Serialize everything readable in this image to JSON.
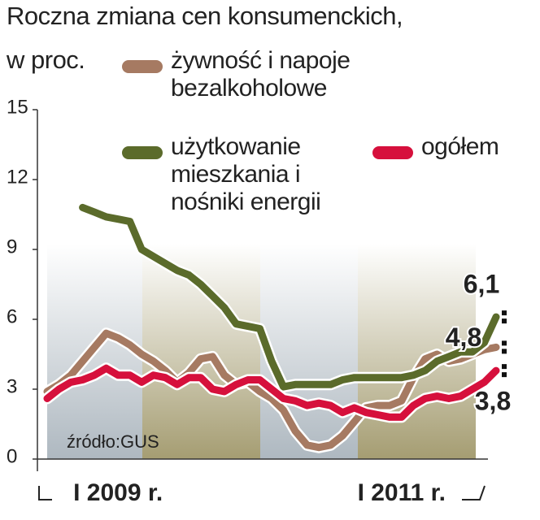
{
  "chart_data": {
    "type": "line",
    "title": "Roczna zmiana cen konsumenckich,",
    "y_label": "w proc.",
    "source": "źródło:GUS",
    "categories": [
      null,
      null,
      null,
      null,
      null,
      null,
      "I 2009 r.",
      null,
      null,
      null,
      null,
      null,
      null,
      null,
      null,
      null,
      null,
      null,
      null,
      null,
      null,
      null,
      null,
      null,
      null,
      null,
      null,
      null,
      null,
      null,
      "I 2011 r.",
      null,
      null,
      null,
      null,
      null,
      null,
      null,
      null
    ],
    "ylim": [
      0,
      15
    ],
    "yticks": [
      0,
      3,
      6,
      9,
      12,
      15
    ],
    "grid": false,
    "series": [
      {
        "name": "żywność i napoje bezalkoholowe",
        "color": "#a67a62",
        "values": [
          2.9,
          3.2,
          3.6,
          4.2,
          4.8,
          5.4,
          5.2,
          4.9,
          4.5,
          4.2,
          3.8,
          3.3,
          3.7,
          4.3,
          4.4,
          3.6,
          3.2,
          3.3,
          2.9,
          2.6,
          2.1,
          1.2,
          0.6,
          0.5,
          0.6,
          1.0,
          1.6,
          2.2,
          2.3,
          2.3,
          2.5,
          3.5,
          4.3,
          4.5,
          4.2,
          4.3,
          4.5,
          4.7,
          4.8
        ],
        "value_labels": [
          null,
          null,
          null,
          null,
          null,
          null,
          null,
          null,
          null,
          null,
          null,
          null,
          null,
          null,
          null,
          null,
          null,
          null,
          null,
          null,
          null,
          null,
          null,
          null,
          null,
          null,
          null,
          null,
          null,
          null,
          null,
          null,
          null,
          null,
          null,
          null,
          null,
          null,
          "4,8"
        ]
      },
      {
        "name": "użytkowanie mieszkania i nośniki energii",
        "color": "#5b6b2b",
        "values": [
          null,
          null,
          null,
          10.8,
          10.6,
          10.4,
          10.3,
          10.2,
          9.0,
          8.7,
          8.4,
          8.1,
          7.9,
          7.5,
          7.0,
          6.5,
          5.8,
          5.7,
          5.6,
          4.2,
          3.1,
          3.2,
          3.2,
          3.2,
          3.2,
          3.4,
          3.5,
          3.5,
          3.5,
          3.5,
          3.5,
          3.6,
          3.8,
          4.2,
          4.4,
          4.6,
          4.6,
          5.0,
          6.1
        ],
        "value_labels": [
          null,
          null,
          null,
          null,
          null,
          null,
          null,
          null,
          null,
          null,
          null,
          null,
          null,
          null,
          null,
          null,
          null,
          null,
          null,
          null,
          null,
          null,
          null,
          null,
          null,
          null,
          null,
          null,
          null,
          null,
          null,
          null,
          null,
          null,
          null,
          null,
          null,
          null,
          "6,1"
        ]
      },
      {
        "name": "ogółem",
        "color": "#d6103c",
        "values": [
          2.6,
          3.0,
          3.3,
          3.4,
          3.6,
          3.9,
          3.6,
          3.6,
          3.3,
          3.6,
          3.5,
          3.2,
          3.5,
          3.5,
          3.0,
          2.9,
          3.2,
          3.4,
          3.4,
          3.0,
          2.6,
          2.5,
          2.3,
          2.4,
          2.3,
          2.0,
          2.2,
          2.0,
          1.9,
          1.8,
          1.8,
          2.3,
          2.6,
          2.7,
          2.6,
          2.7,
          3.0,
          3.3,
          3.8
        ],
        "value_labels": [
          null,
          null,
          null,
          null,
          null,
          null,
          null,
          null,
          null,
          null,
          null,
          null,
          null,
          null,
          null,
          null,
          null,
          null,
          null,
          null,
          null,
          null,
          null,
          null,
          null,
          null,
          null,
          null,
          null,
          null,
          null,
          null,
          null,
          null,
          null,
          null,
          null,
          null,
          "3,8"
        ]
      }
    ]
  }
}
